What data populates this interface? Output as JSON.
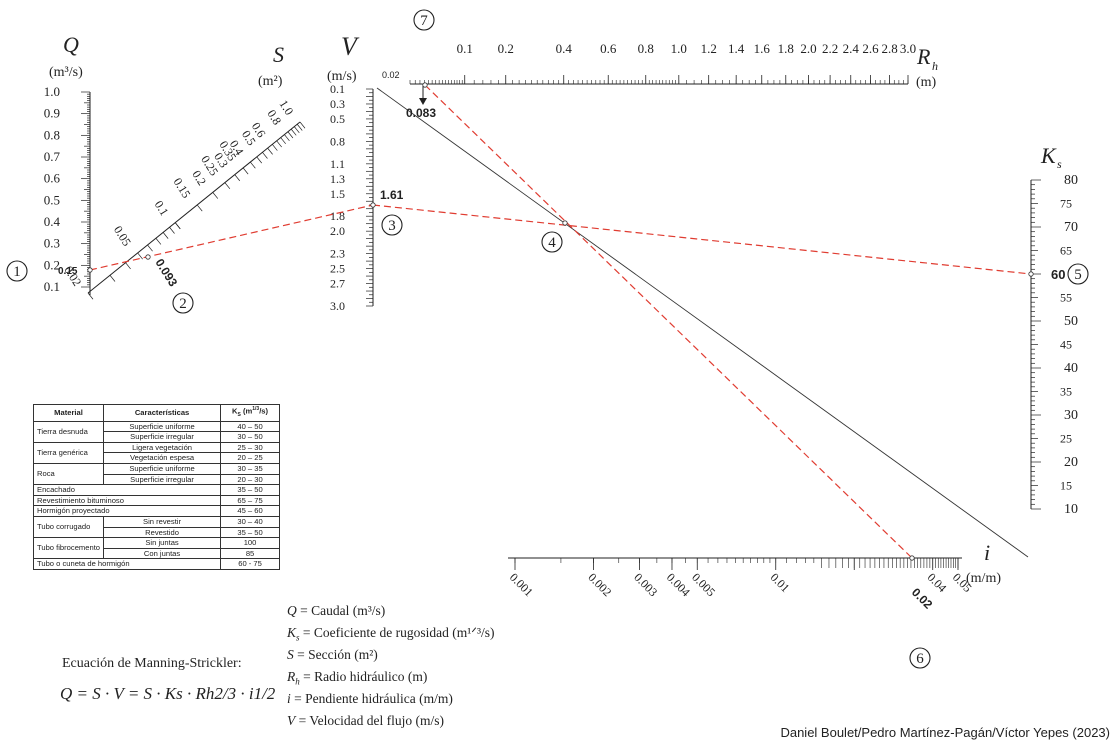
{
  "axes": {
    "Q": {
      "symbol": "Q",
      "unit": "(m³/s)",
      "ticks": [
        "1.0",
        "0.9",
        "0.8",
        "0.7",
        "0.6",
        "0.5",
        "0.4",
        "0.3",
        "0.2",
        "0.1"
      ],
      "range": [
        0.1,
        1.0
      ]
    },
    "S": {
      "symbol": "S",
      "unit": "(m²)",
      "ticks": [
        "0.02",
        "0.05",
        "0.1",
        "0.15",
        "0.2",
        "0.25",
        "0.3",
        "0.35",
        "0.4",
        "0.5",
        "0.6",
        "0.8",
        "1.0"
      ]
    },
    "V": {
      "symbol": "V",
      "unit": "(m/s)",
      "ticks": [
        "0.1",
        "0.3",
        "0.5",
        "0.8",
        "1.1",
        "1.3",
        "1.5",
        "1.8",
        "2.0",
        "2.3",
        "2.5",
        "2.7",
        "3.0"
      ]
    },
    "Rh": {
      "symbol": "R",
      "subscript": "h",
      "unit": "(m)",
      "ticks": [
        "0.1",
        "0.2",
        "0.4",
        "0.6",
        "0.8",
        "1.0",
        "1.2",
        "1.4",
        "1.6",
        "1.8",
        "2.0",
        "2.2",
        "2.4",
        "2.6",
        "2.8",
        "3.0"
      ],
      "start_label": "0.02"
    },
    "Ks": {
      "symbol": "K",
      "subscript": "s",
      "ticks": [
        "80",
        "75",
        "70",
        "65",
        "60",
        "55",
        "50",
        "45",
        "40",
        "35",
        "30",
        "25",
        "20",
        "15",
        "10"
      ],
      "range": [
        10,
        80
      ]
    },
    "i": {
      "symbol": "i",
      "unit": "(m/m)",
      "ticks": [
        "0.001",
        "0.002",
        "0.003",
        "0.004",
        "0.005",
        "0.01",
        "0.02",
        "0.04",
        "0.05"
      ]
    }
  },
  "example": {
    "Q_value": "0.15",
    "S_value": "0.093",
    "V_value": "1.61",
    "Rh_value": "0.083",
    "Ks_value": "60",
    "i_value": "0.02",
    "steps": [
      "1",
      "2",
      "3",
      "4",
      "5",
      "6",
      "7"
    ]
  },
  "table": {
    "headers": [
      "Material",
      "Características",
      "Ks (m1/3/s)"
    ],
    "header_ks_base": "K",
    "header_ks_sub": "S",
    "header_ks_unit": " (m",
    "header_ks_exp": "1/3",
    "header_ks_tail": "/s)",
    "rows": [
      {
        "material": "Tierra desnuda",
        "span": 2,
        "items": [
          [
            "Superficie uniforme",
            "40 – 50"
          ],
          [
            "Superficie irregular",
            "30 – 50"
          ]
        ]
      },
      {
        "material": "Tierra genérica",
        "span": 2,
        "items": [
          [
            "Ligera vegetación",
            "25 – 30"
          ],
          [
            "Vegetación espesa",
            "20 – 25"
          ]
        ]
      },
      {
        "material": "Roca",
        "span": 2,
        "items": [
          [
            "Superficie uniforme",
            "30 – 35"
          ],
          [
            "Superficie irregular",
            "20 – 30"
          ]
        ]
      },
      {
        "material": "Encachado",
        "span": 1,
        "items": [
          [
            "",
            "35 – 50"
          ]
        ]
      },
      {
        "material": "Revestimiento bituminoso",
        "span": 1,
        "items": [
          [
            "",
            "65 – 75"
          ]
        ]
      },
      {
        "material": "Hormigón proyectado",
        "span": 1,
        "items": [
          [
            "",
            "45 – 60"
          ]
        ]
      },
      {
        "material": "Tubo corrugado",
        "span": 2,
        "items": [
          [
            "Sin revestir",
            "30 – 40"
          ],
          [
            "Revestido",
            "35 – 50"
          ]
        ]
      },
      {
        "material": "Tubo fibrocemento",
        "span": 2,
        "items": [
          [
            "Sin juntas",
            "100"
          ],
          [
            "Con juntas",
            "85"
          ]
        ]
      },
      {
        "material": "Tubo o cuneta de hormigón",
        "span": 1,
        "items": [
          [
            "",
            "60 - 75"
          ]
        ]
      }
    ]
  },
  "legend": [
    {
      "sym": "Q",
      "text": " =  Caudal (m³/s)"
    },
    {
      "sym": "K",
      "sub": "s",
      "text": " =  Coeficiente de rugosidad (m¹ᐟ³/s)"
    },
    {
      "sym": "S",
      "text": " =  Sección (m²)"
    },
    {
      "sym": "R",
      "sub": "h",
      "text": " =  Radio hidráulico (m)"
    },
    {
      "sym": "i",
      "text": " =  Pendiente hidráulica (m/m)"
    },
    {
      "sym": "V",
      "text": " = Velocidad del flujo (m/s)"
    }
  ],
  "equation": {
    "caption": "Ecuación de Manning-Strickler:",
    "formula": "Q = S · V = S · Ks · Rh2/3 · i1/2"
  },
  "credit": "Daniel Boulet/Pedro Martínez-Pagán/Víctor Yepes (2023)",
  "colors": {
    "ink": "#222222",
    "dashed_line": "#e03c31",
    "guide_line": "#333333"
  }
}
